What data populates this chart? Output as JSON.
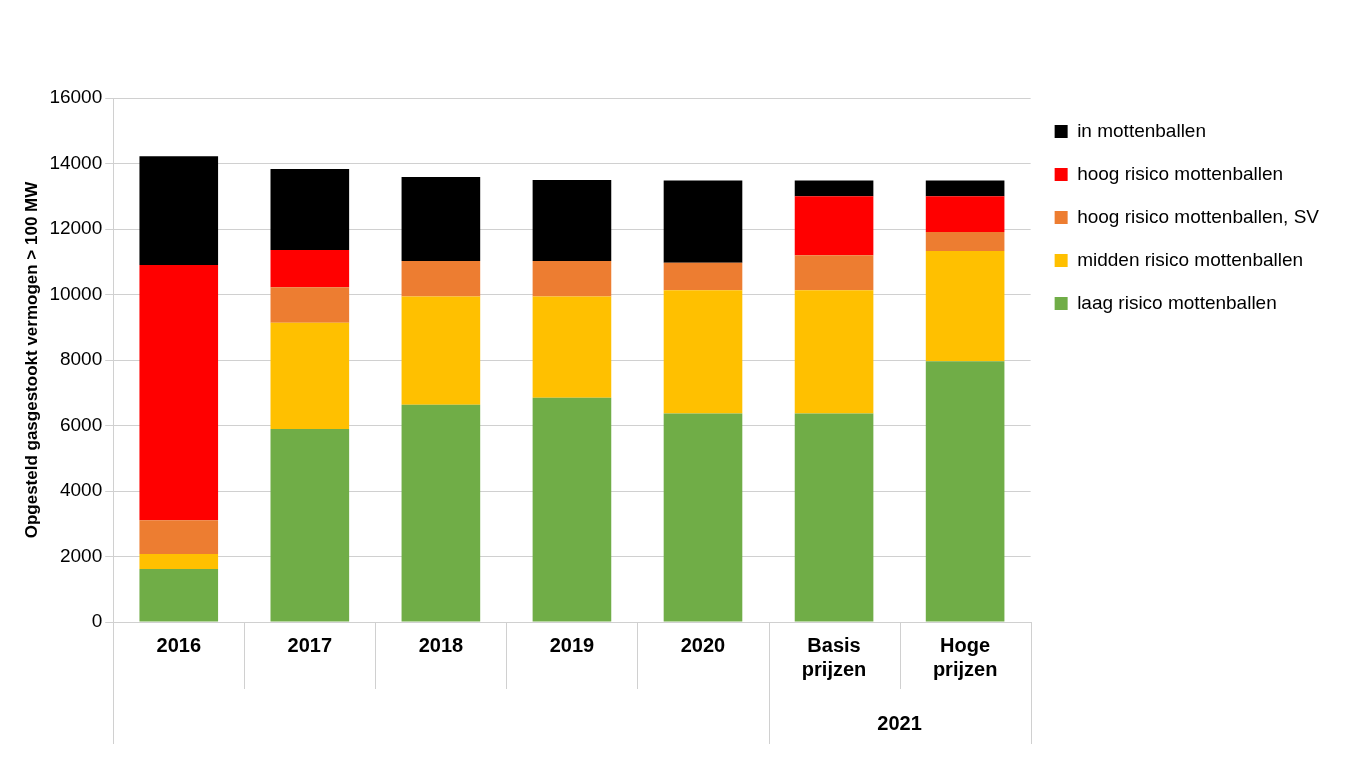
{
  "chart_data": {
    "type": "bar",
    "stacked": true,
    "ylabel": "Opgesteld gasgestookt vermogen > 100 MW",
    "categories": [
      "2016",
      "2017",
      "2018",
      "2019",
      "2020",
      "Basis prijzen",
      "Hoge prijzen"
    ],
    "series": [
      {
        "name": "laag risico mottenballen",
        "color": "#70ad47",
        "values": [
          1620,
          5890,
          6630,
          6850,
          6370,
          6370,
          7960
        ]
      },
      {
        "name": "midden risico mottenballen",
        "color": "#ffc000",
        "values": [
          460,
          3250,
          3310,
          3090,
          3760,
          3760,
          3370
        ]
      },
      {
        "name": "hoog risico mottenballen, SV",
        "color": "#ed7d31",
        "values": [
          1030,
          1080,
          1080,
          1080,
          840,
          1070,
          580
        ]
      },
      {
        "name": "hoog risico mottenballen",
        "color": "#ff0000",
        "values": [
          7790,
          1140,
          0,
          0,
          0,
          1800,
          1090
        ]
      },
      {
        "name": "in mottenballen",
        "color": "#000000",
        "values": [
          3320,
          2470,
          2570,
          2480,
          2510,
          480,
          480
        ]
      }
    ],
    "ylim": [
      0,
      16000
    ],
    "yticks": [
      0,
      2000,
      4000,
      6000,
      8000,
      10000,
      12000,
      14000,
      16000
    ],
    "grid": "y",
    "legend": "right",
    "annotations": [
      "2021"
    ]
  }
}
